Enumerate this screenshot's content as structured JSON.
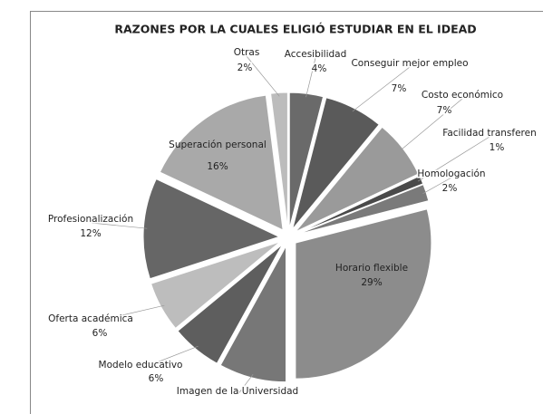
{
  "chart_data": {
    "type": "pie",
    "title": "RAZONES POR LA CUALES ELIGIÓ ESTUDIAR EN EL IDEAD",
    "categories": [
      "Accesibilidad",
      "Conseguir mejor empleo",
      "Costo económico",
      "Facilidad transferen",
      "Homologación",
      "Horario flexible",
      "Imagen de la Universidad",
      "Modelo educativo",
      "Oferta académica",
      "Profesionalización",
      "Superación personal",
      "Otras"
    ],
    "values": [
      4,
      7,
      7,
      1,
      2,
      29,
      8,
      6,
      6,
      12,
      16,
      2
    ],
    "value_labels": [
      "4%",
      "7%",
      "7%",
      "1%",
      "2%",
      "29%",
      null,
      "6%",
      "6%",
      "12%",
      "16%",
      "2%"
    ],
    "colors": [
      "#6a6a6a",
      "#5a5a5a",
      "#9a9a9a",
      "#4a4a4a",
      "#7a7a7a",
      "#8c8c8c",
      "#777777",
      "#5e5e5e",
      "#bdbdbd",
      "#666666",
      "#a9a9a9",
      "#bcbcbc"
    ]
  }
}
